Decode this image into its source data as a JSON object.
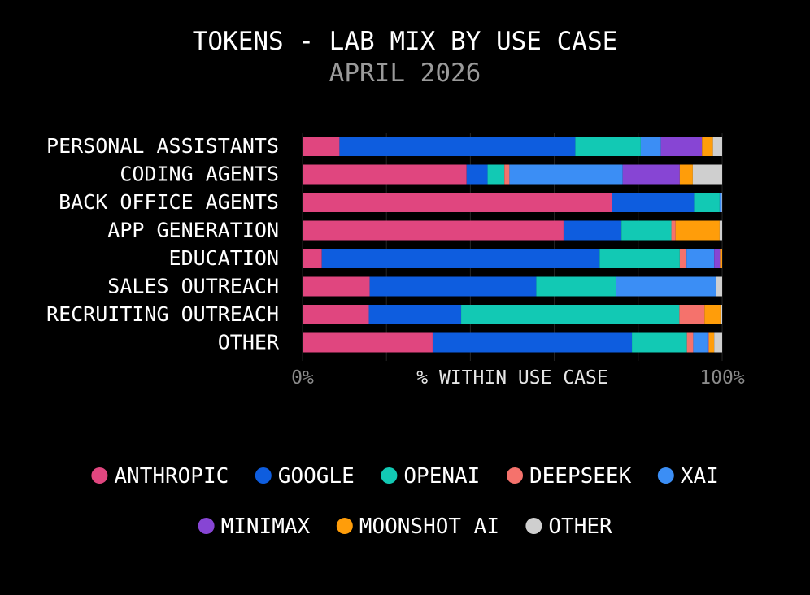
{
  "chart_data": {
    "type": "bar",
    "orientation": "horizontal",
    "stacked": true,
    "title": "TOKENS - LAB MIX BY USE CASE",
    "subtitle": "APRIL 2026",
    "xlabel": "% WITHIN USE CASE",
    "xlim": [
      0,
      100
    ],
    "x_ticks": [
      "0%",
      "100%"
    ],
    "grid": true,
    "legend_position": "bottom",
    "categories": [
      "PERSONAL ASSISTANTS",
      "CODING AGENTS",
      "BACK OFFICE AGENTS",
      "APP GENERATION",
      "EDUCATION",
      "SALES OUTREACH",
      "RECRUITING OUTREACH",
      "OTHER"
    ],
    "series": [
      {
        "name": "ANTHROPIC",
        "color": "#e0467f",
        "values": [
          8.8,
          39.1,
          73.8,
          62.2,
          4.6,
          16.0,
          15.8,
          31.0
        ]
      },
      {
        "name": "GOOGLE",
        "color": "#0e5ddf",
        "values": [
          56.2,
          5.0,
          19.5,
          13.8,
          66.2,
          39.7,
          22.0,
          47.5
        ]
      },
      {
        "name": "OPENAI",
        "color": "#12c9b4",
        "values": [
          15.6,
          4.0,
          6.1,
          11.9,
          19.1,
          19.0,
          52.0,
          13.1
        ]
      },
      {
        "name": "DEEPSEEK",
        "color": "#f5726c",
        "values": [
          0.0,
          1.2,
          0.0,
          1.0,
          1.6,
          0.0,
          6.0,
          1.5
        ]
      },
      {
        "name": "XAI",
        "color": "#3b8ef5",
        "values": [
          4.8,
          27.0,
          0.5,
          0.0,
          6.6,
          23.8,
          0.0,
          3.4
        ]
      },
      {
        "name": "MINIMAX",
        "color": "#8745d4",
        "values": [
          9.8,
          13.6,
          0.0,
          0.0,
          1.4,
          0.0,
          0.0,
          0.3
        ]
      },
      {
        "name": "MOONSHOT AI",
        "color": "#ff9d0a",
        "values": [
          2.6,
          3.1,
          0.0,
          10.5,
          0.5,
          0.0,
          3.8,
          1.3
        ]
      },
      {
        "name": "OTHER",
        "color": "#cfcfcf",
        "values": [
          2.2,
          7.0,
          0.1,
          0.6,
          0.0,
          1.5,
          0.4,
          1.9
        ]
      }
    ]
  }
}
